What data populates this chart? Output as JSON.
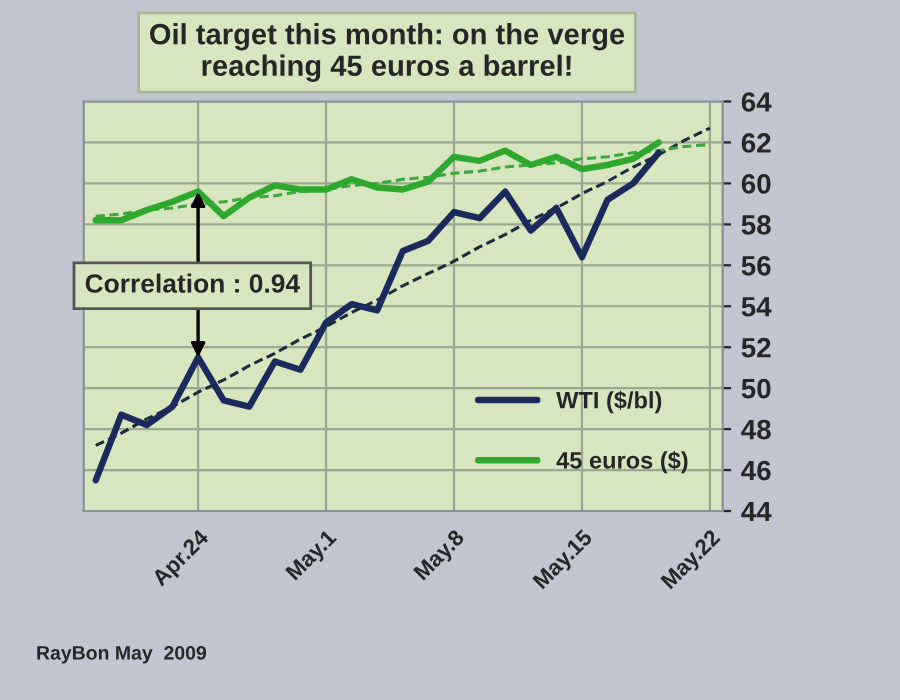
{
  "chart_data": {
    "type": "line",
    "title": "Oil target this month: on the verge\nreaching 45 euros a barrel!",
    "categories": [
      null,
      null,
      null,
      null,
      "Apr.24",
      null,
      null,
      null,
      null,
      "May.1",
      null,
      null,
      null,
      null,
      "May.8",
      null,
      null,
      null,
      null,
      "May.15",
      null,
      null,
      null,
      null,
      "May.22"
    ],
    "series": [
      {
        "name": "WTI ($/bl)",
        "color": "#1b2a5c",
        "line_style": "solid",
        "values": [
          45.5,
          48.7,
          48.2,
          49.1,
          51.5,
          49.4,
          49.1,
          51.3,
          50.9,
          53.2,
          54.1,
          53.8,
          56.7,
          57.2,
          58.6,
          58.3,
          59.6,
          57.7,
          58.8,
          56.4,
          59.2,
          60.0,
          61.5,
          null,
          null
        ]
      },
      {
        "name": "45 euros ($)",
        "color": "#2fa82f",
        "line_style": "solid",
        "values": [
          58.2,
          58.2,
          58.7,
          59.1,
          59.6,
          58.4,
          59.3,
          59.9,
          59.7,
          59.7,
          60.2,
          59.8,
          59.7,
          60.1,
          61.3,
          61.1,
          61.6,
          60.9,
          61.3,
          60.7,
          60.9,
          61.2,
          62.0,
          null,
          null
        ]
      },
      {
        "color": "#1b2a3c",
        "line_style": "dashed",
        "values": [
          47.2,
          47.8,
          48.5,
          49.1,
          49.8,
          50.4,
          51.1,
          51.7,
          52.4,
          53.0,
          53.7,
          54.3,
          55.0,
          55.6,
          56.2,
          56.9,
          57.5,
          58.2,
          58.8,
          59.5,
          60.1,
          60.8,
          61.4,
          62.1,
          62.7
        ]
      },
      {
        "color": "#3aa83a",
        "line_style": "dashed",
        "values": [
          58.4,
          58.5,
          58.7,
          58.8,
          59.0,
          59.1,
          59.3,
          59.4,
          59.6,
          59.7,
          59.9,
          60.0,
          60.2,
          60.3,
          60.5,
          60.6,
          60.8,
          60.9,
          61.0,
          61.2,
          61.3,
          61.5,
          61.6,
          61.8,
          61.9
        ]
      }
    ],
    "ylim": [
      44,
      64
    ],
    "yticks": [
      44,
      46,
      48,
      50,
      52,
      54,
      56,
      58,
      60,
      62,
      64
    ],
    "grid": true,
    "legend": "bottom right",
    "marker": "none",
    "annotations": [
      "Correlation : 0.94",
      "RayBon May  2009"
    ]
  }
}
